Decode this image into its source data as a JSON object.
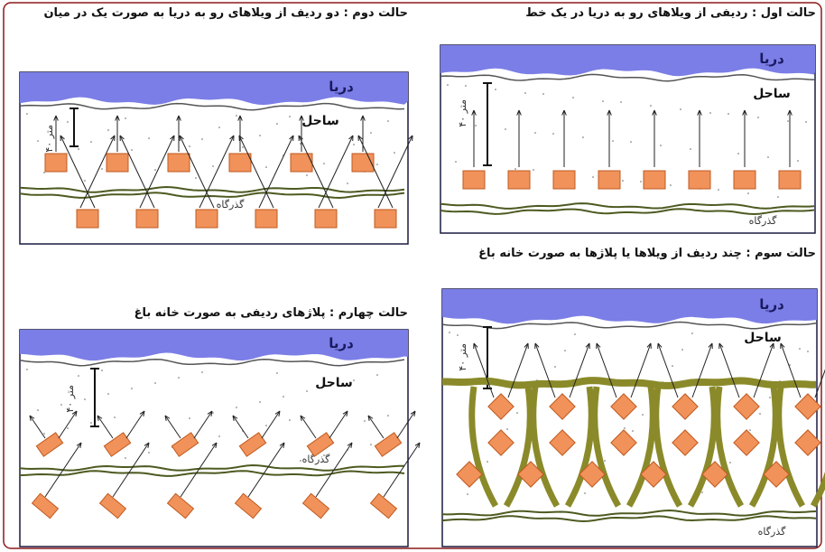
{
  "panels": [
    {
      "title": "حالت اول : ردیفی از ویلاهای رو به دریا در یک خط",
      "sea": "دریا",
      "beach": "ساحل",
      "distance": "۴۰ متر",
      "passage": "گذرگاه"
    },
    {
      "title": "حالت دوم : دو ردیف از ویلاهای رو به دریا به صورت یک در میان",
      "sea": "دریا",
      "beach": "ساحل",
      "distance": "۴۰ متر",
      "passage": "گذرگاه"
    },
    {
      "title": "حالت سوم : چند ردیف از ویلاها یا پلاژها به صورت خانه باغ",
      "sea": "دریا",
      "beach": "ساحل",
      "distance": "۴۰ متر",
      "passage": "گذرگاه"
    },
    {
      "title": "حالت چهارم : پلاژهای ردیفی به صورت خانه باغ",
      "sea": "دریا",
      "beach": "ساحل",
      "distance": "۴۰ متر",
      "passage": "گذرگاه"
    }
  ]
}
